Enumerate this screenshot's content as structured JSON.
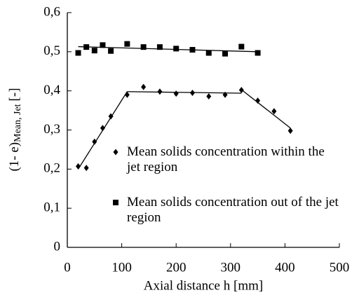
{
  "chart_data": {
    "type": "scatter",
    "x_label": "Axial distance h [mm]",
    "y_label": {
      "main": "(1- e)",
      "subscript": "Mean, Jet",
      "unit": "[-]"
    },
    "xlim": [
      0,
      500
    ],
    "xticks": [
      0,
      100,
      200,
      300,
      400,
      500
    ],
    "ylim": [
      0,
      0.6
    ],
    "yticks": [
      0,
      {
        "value": 0.1,
        "label": "0,1"
      },
      {
        "value": 0.2,
        "label": "0,2"
      },
      {
        "value": 0.3,
        "label": "0,3"
      },
      {
        "value": 0.4,
        "label": "0,4"
      },
      {
        "value": 0.5,
        "label": "0,5"
      },
      {
        "value": 0.6,
        "label": "0,6"
      }
    ],
    "series": [
      {
        "name": "Mean solids concentration within the jet region",
        "marker": "diamond",
        "color": "#000000",
        "x": [
          20,
          35,
          50,
          65,
          80,
          110,
          140,
          170,
          200,
          230,
          260,
          290,
          320,
          350,
          380,
          410
        ],
        "values": [
          0.207,
          0.203,
          0.27,
          0.305,
          0.335,
          0.39,
          0.41,
          0.398,
          0.393,
          0.395,
          0.386,
          0.39,
          0.402,
          0.375,
          0.348,
          0.298
        ]
      },
      {
        "name": "Mean solids concentration out of the jet region",
        "marker": "square",
        "color": "#000000",
        "x": [
          20,
          35,
          50,
          65,
          80,
          110,
          140,
          170,
          200,
          230,
          260,
          290,
          320,
          350
        ],
        "values": [
          0.497,
          0.512,
          0.503,
          0.517,
          0.502,
          0.52,
          0.512,
          0.512,
          0.508,
          0.505,
          0.497,
          0.495,
          0.513,
          0.497
        ]
      }
    ],
    "trend_lines": [
      {
        "x": [
          20,
          110
        ],
        "values": [
          0.2,
          0.398
        ]
      },
      {
        "x": [
          110,
          320
        ],
        "values": [
          0.398,
          0.394
        ]
      },
      {
        "x": [
          320,
          410
        ],
        "values": [
          0.403,
          0.305
        ]
      },
      {
        "x": [
          20,
          350
        ],
        "values": [
          0.513,
          0.5
        ]
      }
    ]
  }
}
